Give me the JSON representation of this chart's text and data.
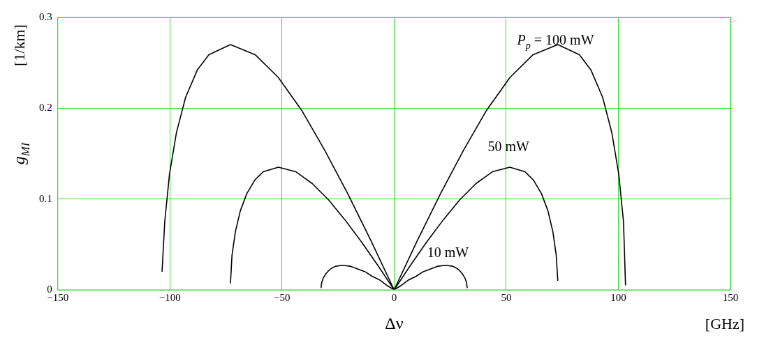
{
  "chart_data": {
    "type": "line",
    "xlabel": "Δν",
    "ylabel": "g$_{MI}$",
    "xlim": [
      -150,
      150
    ],
    "xticks": [
      {
        "value": -150,
        "label": "−150"
      },
      {
        "value": -100,
        "label": "−100"
      },
      {
        "value": -50,
        "label": "−50"
      },
      0,
      50,
      100,
      150
    ],
    "ylim": [
      0,
      0.3
    ],
    "yticks": [
      0,
      0.1,
      0.2,
      0.3
    ],
    "grid": true,
    "legend": false,
    "marker": "none",
    "line_style": "solid",
    "series": [
      {
        "color": "#000000",
        "x": [
          -103.5,
          -102.3,
          -100.2,
          -97.1,
          -93,
          -87.8,
          -82.6,
          -73,
          -62,
          -51.7,
          -41.3,
          -31,
          -20.7,
          -10.3,
          0,
          10.3,
          20.7,
          31,
          41.3,
          51.7,
          62,
          73,
          82.6,
          87.8,
          93,
          97.1,
          100.2,
          102.3,
          103.2
        ],
        "values": [
          0.02,
          0.075,
          0.127,
          0.173,
          0.212,
          0.242,
          0.259,
          0.27,
          0.259,
          0.234,
          0.198,
          0.154,
          0.106,
          0.054,
          0,
          0.054,
          0.106,
          0.154,
          0.198,
          0.234,
          0.259,
          0.27,
          0.259,
          0.242,
          0.212,
          0.173,
          0.127,
          0.075,
          0.005
        ]
      },
      {
        "color": "#000000",
        "x": [
          -73,
          -72.3,
          -70.8,
          -68.6,
          -65.7,
          -62.1,
          -58.4,
          -51.6,
          -43.8,
          -36.5,
          -29.2,
          -21.9,
          -14.6,
          -7.3,
          0,
          7.3,
          14.6,
          21.9,
          29.2,
          36.5,
          43.8,
          51.6,
          58.4,
          62.1,
          65.7,
          68.6,
          70.8,
          72.3,
          73
        ],
        "values": [
          0.007,
          0.038,
          0.064,
          0.087,
          0.106,
          0.121,
          0.13,
          0.135,
          0.13,
          0.117,
          0.099,
          0.077,
          0.053,
          0.027,
          0,
          0.027,
          0.053,
          0.077,
          0.099,
          0.117,
          0.13,
          0.135,
          0.13,
          0.121,
          0.106,
          0.087,
          0.064,
          0.038,
          0.01
        ]
      },
      {
        "color": "#000000",
        "x": [
          -32.6,
          -32.3,
          -31.6,
          -30.6,
          -29.3,
          -27.7,
          -26.1,
          -23,
          -19.6,
          -16.3,
          -13,
          -9.8,
          -6.5,
          -3.3,
          0,
          3.3,
          6.5,
          9.8,
          13,
          16.3,
          19.6,
          23,
          26.1,
          27.7,
          29.3,
          30.6,
          31.6,
          32.3,
          32.6
        ],
        "values": [
          0.002,
          0.008,
          0.013,
          0.017,
          0.021,
          0.024,
          0.026,
          0.027,
          0.026,
          0.023,
          0.02,
          0.015,
          0.011,
          0.005,
          0,
          0.005,
          0.011,
          0.015,
          0.02,
          0.023,
          0.026,
          0.027,
          0.026,
          0.024,
          0.021,
          0.017,
          0.013,
          0.008,
          0.002
        ]
      }
    ],
    "annotations": [
      "P$_{p}$ = 100 mW",
      "50 mW",
      "10 mW",
      "[1/km]",
      "[GHz]"
    ]
  }
}
